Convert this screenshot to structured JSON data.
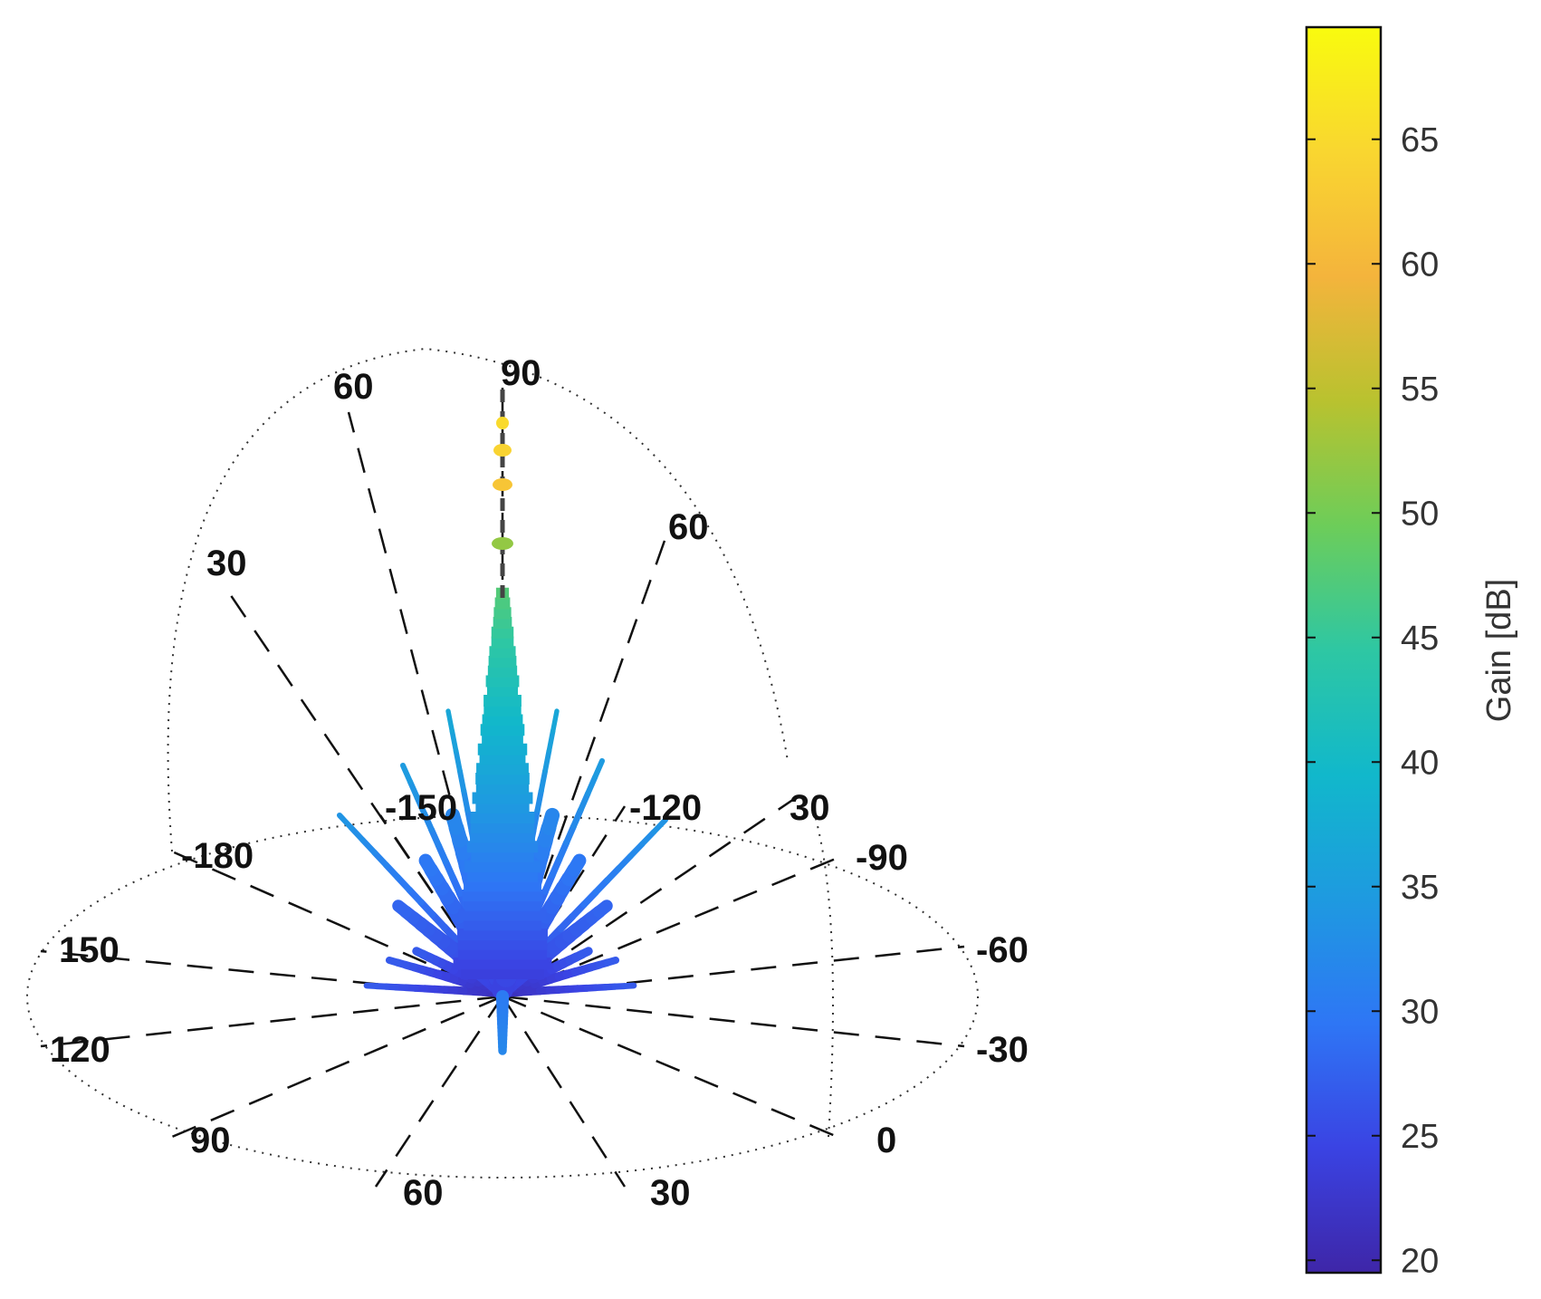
{
  "chart_data": {
    "type": "3d-polar-radiation-pattern",
    "colorbar": {
      "label": "Gain [dB]",
      "range": [
        19.5,
        69.5
      ],
      "ticks": [
        "20",
        "25",
        "30",
        "35",
        "40",
        "45",
        "50",
        "55",
        "60",
        "65"
      ],
      "colormap": [
        "#3e26a8",
        "#3a43e3",
        "#2e76f5",
        "#1e9ae0",
        "#11b8cb",
        "#2ec7a3",
        "#6dcd59",
        "#b9c22f",
        "#f4b43c",
        "#f9d630",
        "#f9fb0e"
      ]
    },
    "azimuth_labels": [
      "-180",
      "-150",
      "-120",
      "-90",
      "-60",
      "-30",
      "0",
      "30",
      "60",
      "90",
      "120",
      "150"
    ],
    "elevation_labels_left": [
      "30",
      "60",
      "90"
    ],
    "elevation_labels_right": [
      "60",
      "30"
    ],
    "pattern": {
      "main_lobe_peak_gain_db": 69,
      "main_lobe_direction_deg": 90,
      "sidelobe_gain_db_range": [
        26,
        42
      ],
      "floor_gain_db": 20
    }
  }
}
